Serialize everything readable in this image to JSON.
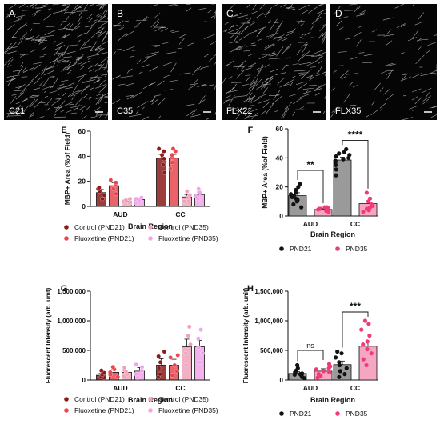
{
  "micrographs": [
    {
      "letter": "A",
      "label": "C21",
      "density": 1.0
    },
    {
      "letter": "B",
      "label": "C35",
      "density": 0.35
    },
    {
      "letter": "C",
      "label": "FLX21",
      "density": 0.75
    },
    {
      "letter": "D",
      "label": "FLX35",
      "density": 0.3
    }
  ],
  "colors": {
    "control_pnd21": "#8b1a1a",
    "fluoxetine_pnd21": "#e8474f",
    "control_pnd35": "#efa3bb",
    "fluoxetine_pnd35": "#f0a6ea",
    "pnd21": "#111111",
    "pnd35": "#ee3b7a",
    "bar_pnd21": "#9a9a9a",
    "bar_pnd35": "#f4a6c3"
  },
  "chart_data": [
    {
      "panel": "E",
      "type": "bar",
      "ylabel": "MBP+ Area (%of Field)",
      "xlabel": "Brain Region",
      "ylim": [
        0,
        60
      ],
      "yticks": [
        0,
        20,
        40,
        60
      ],
      "categories": [
        "AUD",
        "CC"
      ],
      "series": [
        {
          "name": "Control (PND21)",
          "color_key": "control_pnd21",
          "values": [
            11,
            38.5
          ],
          "errors": [
            2.5,
            3
          ],
          "points": [
            [
              6,
              9,
              12,
              14,
              15
            ],
            [
              27,
              33,
              38,
              41,
              44,
              46
            ]
          ]
        },
        {
          "name": "Fluoxetine (PND21)",
          "color_key": "fluoxetine_pnd21",
          "values": [
            16.5,
            38.5
          ],
          "errors": [
            2.5,
            3
          ],
          "points": [
            [
              10,
              14,
              17,
              19,
              21
            ],
            [
              30,
              35,
              39,
              41,
              44,
              46
            ]
          ]
        },
        {
          "name": "Control (PND35)",
          "color_key": "control_pnd35",
          "values": [
            4,
            7.5
          ],
          "errors": [
            1.2,
            2
          ],
          "points": [
            [
              2,
              3,
              4,
              5,
              6
            ],
            [
              4,
              5,
              7,
              9,
              12
            ]
          ]
        },
        {
          "name": "Fluoxetine (PND35)",
          "color_key": "fluoxetine_pnd35",
          "values": [
            5.5,
            9.5
          ],
          "errors": [
            1.2,
            2
          ],
          "points": [
            [
              3,
              4,
              5,
              6,
              7
            ],
            [
              5,
              6,
              8,
              11,
              14
            ]
          ]
        }
      ],
      "legend": [
        "Control (PND21)",
        "Control (PND35)",
        "Fluoxetine (PND21)",
        "Fluoxetine (PND35)"
      ]
    },
    {
      "panel": "F",
      "type": "bar",
      "ylabel": "MBP+ Area (%of Field)",
      "xlabel": "Brain Region",
      "ylim": [
        0,
        60
      ],
      "yticks": [
        0,
        20,
        40,
        60
      ],
      "categories": [
        "AUD",
        "CC"
      ],
      "series": [
        {
          "name": "PND21",
          "color_key": "bar_pnd21",
          "dot_key": "pnd21",
          "values": [
            14,
            38.5
          ],
          "errors": [
            2,
            2
          ],
          "points": [
            [
              6,
              8,
              10,
              11,
              12,
              13,
              14,
              15,
              16,
              18,
              20,
              22
            ],
            [
              28,
              32,
              35,
              37,
              38,
              39,
              40,
              41,
              42,
              43,
              44,
              46
            ]
          ]
        },
        {
          "name": "PND35",
          "color_key": "bar_pnd35",
          "dot_key": "pnd35",
          "values": [
            4.5,
            8.5
          ],
          "errors": [
            0.6,
            1.5
          ],
          "points": [
            [
              3,
              3.5,
              4,
              4.5,
              5,
              5,
              5.5,
              6,
              6
            ],
            [
              3,
              4,
              5,
              6,
              7,
              8,
              10,
              12,
              16
            ]
          ]
        }
      ],
      "significance": [
        {
          "category": "AUD",
          "label": "**"
        },
        {
          "category": "CC",
          "label": "****"
        }
      ],
      "legend": [
        "PND21",
        "PND35"
      ]
    },
    {
      "panel": "G",
      "type": "bar",
      "ylabel": "Fluorescent Intensity (arb. unit)",
      "xlabel": "Brain Region",
      "ylim": [
        0,
        1500000
      ],
      "yticks": [
        0,
        500000,
        1000000,
        1500000
      ],
      "ytick_labels": [
        "0",
        "500,000",
        "1,000,000",
        "1,500,000"
      ],
      "categories": [
        "AUD",
        "CC"
      ],
      "series": [
        {
          "name": "Control (PND21)",
          "color_key": "control_pnd21",
          "values": [
            80000,
            250000
          ],
          "errors": [
            30000,
            110000
          ],
          "points": [
            [
              40000,
              60000,
              90000,
              120000,
              160000
            ],
            [
              50000,
              100000,
              200000,
              300000,
              400000,
              480000
            ]
          ]
        },
        {
          "name": "Fluoxetine (PND21)",
          "color_key": "fluoxetine_pnd21",
          "values": [
            130000,
            250000
          ],
          "errors": [
            50000,
            100000
          ],
          "points": [
            [
              50000,
              90000,
              130000,
              180000,
              220000
            ],
            [
              80000,
              150000,
              250000,
              380000,
              420000
            ]
          ]
        },
        {
          "name": "Control (PND35)",
          "color_key": "control_pnd35",
          "values": [
            130000,
            560000
          ],
          "errors": [
            40000,
            130000
          ],
          "points": [
            [
              60000,
              100000,
              140000,
              170000,
              210000
            ],
            [
              250000,
              450000,
              600000,
              750000,
              900000
            ]
          ]
        },
        {
          "name": "Fluoxetine (PND35)",
          "color_key": "fluoxetine_pnd35",
          "values": [
            150000,
            560000
          ],
          "errors": [
            60000,
            110000
          ],
          "points": [
            [
              40000,
              100000,
              160000,
              220000,
              260000
            ],
            [
              300000,
              450000,
              550000,
              700000,
              850000
            ]
          ]
        }
      ],
      "legend": [
        "Control (PND21)",
        "Control (PND35)",
        "Fluoxetine (PND21)",
        "Fluoxetine (PND35)"
      ]
    },
    {
      "panel": "H",
      "type": "bar",
      "ylabel": "Fluorescent Intensity (arb. unit)",
      "xlabel": "Brain Region",
      "ylim": [
        0,
        1500000
      ],
      "yticks": [
        0,
        500000,
        1000000,
        1500000
      ],
      "ytick_labels": [
        "0",
        "500,000",
        "1,000,000",
        "1,500,000"
      ],
      "categories": [
        "AUD",
        "CC"
      ],
      "series": [
        {
          "name": "PND21",
          "color_key": "bar_pnd21",
          "dot_key": "pnd21",
          "values": [
            110000,
            260000
          ],
          "errors": [
            30000,
            60000
          ],
          "points": [
            [
              30000,
              50000,
              70000,
              90000,
              100000,
              110000,
              130000,
              160000,
              200000,
              250000
            ],
            [
              50000,
              100000,
              150000,
              200000,
              250000,
              300000,
              380000,
              450000,
              480000
            ]
          ]
        },
        {
          "name": "PND35",
          "color_key": "bar_pnd35",
          "dot_key": "pnd35",
          "values": [
            150000,
            570000
          ],
          "errors": [
            40000,
            80000
          ],
          "points": [
            [
              40000,
              70000,
              100000,
              130000,
              150000,
              180000,
              200000,
              230000,
              270000
            ],
            [
              250000,
              350000,
              450000,
              520000,
              600000,
              650000,
              750000,
              850000,
              950000,
              1000000
            ]
          ]
        }
      ],
      "significance": [
        {
          "category": "AUD",
          "label": "ns"
        },
        {
          "category": "CC",
          "label": "***"
        }
      ],
      "legend": [
        "PND21",
        "PND35"
      ]
    }
  ]
}
